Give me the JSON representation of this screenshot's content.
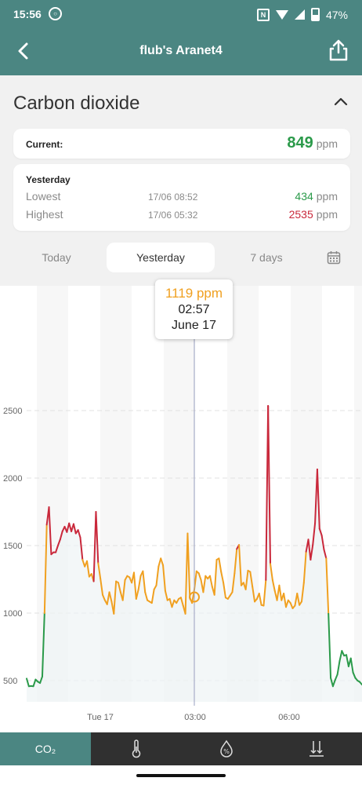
{
  "status_bar": {
    "time": "15:56",
    "battery": "47%",
    "icons": [
      "dnd-icon",
      "nfc-icon",
      "wifi-icon",
      "signal-icon",
      "battery-icon"
    ]
  },
  "app_bar": {
    "title": "flub's Aranet4",
    "back_icon": "chevron-left-icon",
    "share_icon": "share-icon"
  },
  "section": {
    "title": "Carbon dioxide",
    "collapse_icon": "chevron-up-icon"
  },
  "current": {
    "label": "Current:",
    "value": "849",
    "unit": "ppm"
  },
  "yesterday": {
    "heading": "Yesterday",
    "lowest": {
      "label": "Lowest",
      "time": "17/06 08:52",
      "value": "434",
      "unit": "ppm"
    },
    "highest": {
      "label": "Highest",
      "time": "17/06 05:32",
      "value": "2535",
      "unit": "ppm"
    }
  },
  "range_tabs": [
    "Today",
    "Yesterday",
    "7 days"
  ],
  "selected_tab": "Yesterday",
  "calendar_icon": "calendar-icon",
  "tooltip": {
    "value": "1119 ppm",
    "time": "02:57",
    "date": "June 17"
  },
  "bottom_nav": {
    "co2_label": "CO₂",
    "icons": [
      "co2",
      "thermometer-icon",
      "humidity-icon",
      "pressure-icon"
    ]
  },
  "colors": {
    "accent": "#4b8682",
    "good": "#2b9a4a",
    "moderate": "#f0a020",
    "bad": "#c9283b"
  },
  "chart_data": {
    "type": "line",
    "ylim": [
      400,
      2800
    ],
    "y_ticks": [
      "500",
      "1000",
      "1500",
      "2000",
      "2500"
    ],
    "x_ticks": [
      "Tue 17",
      "03:00",
      "06:00"
    ],
    "thresholds": {
      "green_below": 1000,
      "red_above": 1400
    },
    "series": [
      {
        "values": [
          515,
          458,
          460,
          458,
          508,
          492,
          482,
          530,
          1000,
          1655,
          1785,
          1435,
          1450,
          1450,
          1500,
          1545,
          1605,
          1640,
          1600,
          1665,
          1605,
          1660,
          1590,
          1615,
          1560,
          1395,
          1345,
          1385,
          1270,
          1290,
          1235,
          1750,
          1370,
          1255,
          1135,
          1095,
          1065,
          1155,
          1085,
          995,
          1235,
          1225,
          1155,
          1095,
          1245,
          1275,
          1265,
          1225,
          1300,
          1105,
          1175,
          1275,
          1310,
          1155,
          1095,
          1085,
          1075,
          1175,
          1205,
          1345,
          1405,
          1355,
          1165,
          1095,
          1105,
          1045,
          1095,
          1075,
          1105,
          1115,
          1055,
          995,
          1590,
          1115,
          1075,
          1175,
          1310,
          1295,
          1245,
          1155,
          1275,
          1255,
          1275,
          1195,
          1135,
          1395,
          1405,
          1305,
          1225,
          1115,
          1105,
          1130,
          1155,
          1295,
          1475,
          1505,
          1205,
          1225,
          1175,
          1315,
          1305,
          1195,
          1085,
          1105,
          1145,
          1060,
          1055,
          1245,
          2535,
          1365,
          1245,
          1165,
          1095,
          1205,
          1095,
          1145,
          1045,
          1095,
          1075,
          1035,
          1055,
          1145,
          1060,
          1085,
          1225,
          1455,
          1545,
          1395,
          1505,
          1665,
          2065,
          1625,
          1575,
          1470,
          1405,
          995,
          520,
          458,
          505,
          545,
          645,
          720,
          685,
          690,
          605,
          665,
          560,
          520,
          500,
          490,
          470
        ]
      }
    ]
  }
}
